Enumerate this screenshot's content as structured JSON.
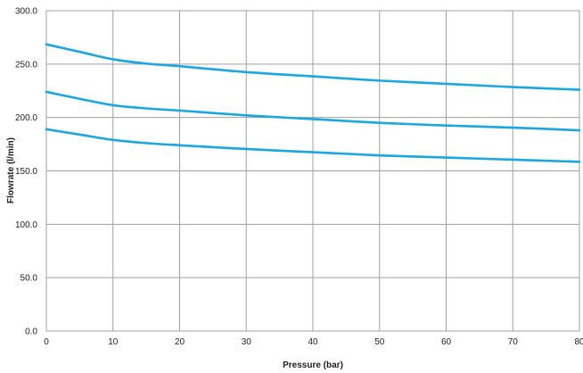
{
  "chart_data": {
    "type": "line",
    "xlabel": "Pressure (bar)",
    "ylabel": "Flowrate (l/min)",
    "xlim": [
      0,
      80
    ],
    "ylim": [
      0,
      300
    ],
    "xticks": [
      0,
      10,
      20,
      30,
      40,
      50,
      60,
      70,
      80
    ],
    "yticks": [
      0,
      50,
      100,
      150,
      200,
      250,
      300
    ],
    "ytick_labels": [
      "0.0",
      "50.0",
      "100.0",
      "150.0",
      "200.0",
      "250.0",
      "300.0"
    ],
    "grid": true,
    "line_color": "#1aa7e0",
    "x": [
      0,
      5,
      10,
      15,
      20,
      30,
      40,
      50,
      60,
      70,
      80
    ],
    "series": [
      {
        "values": [
          268.5,
          261.5,
          254.5,
          250.5,
          248,
          242.5,
          238.5,
          234.5,
          231.5,
          228.5,
          226
        ]
      },
      {
        "values": [
          224,
          217.5,
          211.5,
          208.5,
          206.5,
          202,
          198.5,
          195,
          192.5,
          190.5,
          188
        ]
      },
      {
        "values": [
          189,
          184,
          179,
          176,
          174,
          170.5,
          167.5,
          164.5,
          162.5,
          160.5,
          158.5
        ]
      }
    ]
  }
}
